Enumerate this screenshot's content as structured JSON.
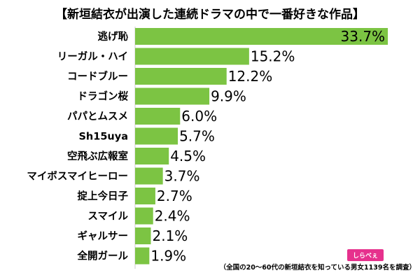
{
  "chart_data": {
    "type": "bar",
    "orientation": "horizontal",
    "title": "【新垣結衣が出演した連続ドラマの中で一番好きな作品】",
    "categories": [
      "逃げ恥",
      "リーガル・ハイ",
      "コードブルー",
      "ドラゴン桜",
      "パパとムスメ",
      "Sh15uya",
      "空飛ぶ広報室",
      "マイボスマイヒーロー",
      "掟上今日子",
      "スマイル",
      "ギャルサー",
      "全開ガール"
    ],
    "values": [
      33.7,
      15.2,
      12.2,
      9.9,
      6.0,
      5.7,
      4.5,
      3.7,
      2.7,
      2.4,
      2.1,
      1.9
    ],
    "value_labels": [
      "33.7%",
      "15.2%",
      "12.2%",
      "9.9%",
      "6.0%",
      "5.7%",
      "4.5%",
      "3.7%",
      "2.7%",
      "2.4%",
      "2.1%",
      "1.9%"
    ],
    "unit": "%",
    "xlim": [
      0,
      35
    ],
    "grid": false,
    "legend": "none",
    "bar_color": "#7cc443",
    "note": "（全国の20～60代の新垣結衣を知っている男女1139名を調査）",
    "logo_text": "しらべぇ",
    "logo_color": "#e6318d"
  }
}
